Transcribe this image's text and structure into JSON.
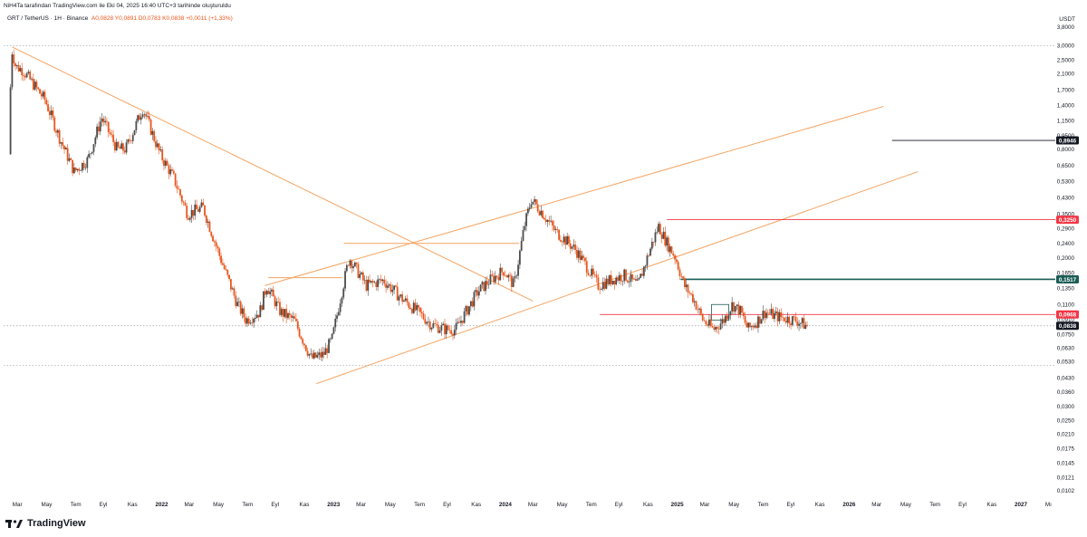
{
  "header": {
    "caption": "NiH4Ta tarafından TradingView.com ile Eki 04, 2025 16:40 UTC+3 tarihinde oluşturuldu",
    "symbol": "GRT / TetherUS · 1H · Binance",
    "ohlc": "A0,0828  Y0,0891  D0,0783  K0,0838  +0,0011 (+1,33%)",
    "currency": "USDT"
  },
  "brand": {
    "name": "TradingView"
  },
  "chart_data": {
    "type": "candlestick",
    "scale": "log",
    "ylim": [
      0.0095,
      3.8
    ],
    "y_ticks": [
      {
        "label": "3,8000",
        "value": 3.8
      },
      {
        "label": "3,0000",
        "value": 3.0
      },
      {
        "label": "2,5000",
        "value": 2.5
      },
      {
        "label": "2,1000",
        "value": 2.1
      },
      {
        "label": "1,7000",
        "value": 1.7
      },
      {
        "label": "1,4000",
        "value": 1.4
      },
      {
        "label": "1,1500",
        "value": 1.15
      },
      {
        "label": "0,9500",
        "value": 0.95
      },
      {
        "label": "0,8000",
        "value": 0.8
      },
      {
        "label": "0,6500",
        "value": 0.65
      },
      {
        "label": "0,5300",
        "value": 0.53
      },
      {
        "label": "0,4300",
        "value": 0.43
      },
      {
        "label": "0,3500",
        "value": 0.35
      },
      {
        "label": "0,2900",
        "value": 0.29
      },
      {
        "label": "0,2400",
        "value": 0.24
      },
      {
        "label": "0,2000",
        "value": 0.2
      },
      {
        "label": "0,1650",
        "value": 0.165
      },
      {
        "label": "0,1350",
        "value": 0.135
      },
      {
        "label": "0,1100",
        "value": 0.11
      },
      {
        "label": "0,0910",
        "value": 0.091
      },
      {
        "label": "0,0750",
        "value": 0.075
      },
      {
        "label": "0,0630",
        "value": 0.063
      },
      {
        "label": "0,0530",
        "value": 0.053
      },
      {
        "label": "0,0430",
        "value": 0.043
      },
      {
        "label": "0,0360",
        "value": 0.036
      },
      {
        "label": "0,0300",
        "value": 0.03
      },
      {
        "label": "0,0250",
        "value": 0.025
      },
      {
        "label": "0,0210",
        "value": 0.021
      },
      {
        "label": "0,0175",
        "value": 0.0175
      },
      {
        "label": "0,0145",
        "value": 0.0145
      },
      {
        "label": "0,0121",
        "value": 0.0121
      },
      {
        "label": "0,0102",
        "value": 0.0102
      }
    ],
    "x_ticks": [
      {
        "label": "Mar",
        "t": 2021.16,
        "bold": false
      },
      {
        "label": "May",
        "t": 2021.33,
        "bold": false
      },
      {
        "label": "Tem",
        "t": 2021.5,
        "bold": false
      },
      {
        "label": "Eyl",
        "t": 2021.66,
        "bold": false
      },
      {
        "label": "Kas",
        "t": 2021.83,
        "bold": false
      },
      {
        "label": "2022",
        "t": 2022.0,
        "bold": true
      },
      {
        "label": "Mar",
        "t": 2022.16,
        "bold": false
      },
      {
        "label": "May",
        "t": 2022.33,
        "bold": false
      },
      {
        "label": "Tem",
        "t": 2022.5,
        "bold": false
      },
      {
        "label": "Eyl",
        "t": 2022.66,
        "bold": false
      },
      {
        "label": "Kas",
        "t": 2022.83,
        "bold": false
      },
      {
        "label": "2023",
        "t": 2023.0,
        "bold": true
      },
      {
        "label": "Mar",
        "t": 2023.16,
        "bold": false
      },
      {
        "label": "May",
        "t": 2023.33,
        "bold": false
      },
      {
        "label": "Tem",
        "t": 2023.5,
        "bold": false
      },
      {
        "label": "Eyl",
        "t": 2023.66,
        "bold": false
      },
      {
        "label": "Kas",
        "t": 2023.83,
        "bold": false
      },
      {
        "label": "2024",
        "t": 2024.0,
        "bold": true
      },
      {
        "label": "Mar",
        "t": 2024.16,
        "bold": false
      },
      {
        "label": "May",
        "t": 2024.33,
        "bold": false
      },
      {
        "label": "Tem",
        "t": 2024.5,
        "bold": false
      },
      {
        "label": "Eyl",
        "t": 2024.66,
        "bold": false
      },
      {
        "label": "Kas",
        "t": 2024.83,
        "bold": false
      },
      {
        "label": "2025",
        "t": 2025.0,
        "bold": true
      },
      {
        "label": "Mar",
        "t": 2025.16,
        "bold": false
      },
      {
        "label": "May",
        "t": 2025.33,
        "bold": false
      },
      {
        "label": "Tem",
        "t": 2025.5,
        "bold": false
      },
      {
        "label": "Eyl",
        "t": 2025.66,
        "bold": false
      },
      {
        "label": "Kas",
        "t": 2025.83,
        "bold": false
      },
      {
        "label": "2026",
        "t": 2026.0,
        "bold": true
      },
      {
        "label": "Mar",
        "t": 2026.16,
        "bold": false
      },
      {
        "label": "May",
        "t": 2026.33,
        "bold": false
      },
      {
        "label": "Tem",
        "t": 2026.5,
        "bold": false
      },
      {
        "label": "Eyl",
        "t": 2026.66,
        "bold": false
      },
      {
        "label": "Kas",
        "t": 2026.83,
        "bold": false
      },
      {
        "label": "2027",
        "t": 2027.0,
        "bold": true
      },
      {
        "label": "Mı",
        "t": 2027.16,
        "bold": false
      }
    ],
    "path": [
      [
        2021.12,
        0.75
      ],
      [
        2021.135,
        2.9
      ],
      [
        2021.16,
        2.3
      ],
      [
        2021.2,
        2.2
      ],
      [
        2021.25,
        1.9
      ],
      [
        2021.33,
        1.5
      ],
      [
        2021.42,
        0.9
      ],
      [
        2021.5,
        0.6
      ],
      [
        2021.58,
        0.7
      ],
      [
        2021.66,
        1.2
      ],
      [
        2021.75,
        0.8
      ],
      [
        2021.8,
        0.8
      ],
      [
        2021.9,
        1.35
      ],
      [
        2022.0,
        0.75
      ],
      [
        2022.08,
        0.55
      ],
      [
        2022.16,
        0.35
      ],
      [
        2022.25,
        0.38
      ],
      [
        2022.35,
        0.2
      ],
      [
        2022.45,
        0.11
      ],
      [
        2022.5,
        0.09
      ],
      [
        2022.58,
        0.1
      ],
      [
        2022.62,
        0.14
      ],
      [
        2022.7,
        0.1
      ],
      [
        2022.78,
        0.09
      ],
      [
        2022.88,
        0.055
      ],
      [
        2022.95,
        0.058
      ],
      [
        2023.0,
        0.07
      ],
      [
        2023.05,
        0.12
      ],
      [
        2023.1,
        0.2
      ],
      [
        2023.2,
        0.14
      ],
      [
        2023.3,
        0.15
      ],
      [
        2023.4,
        0.12
      ],
      [
        2023.5,
        0.1
      ],
      [
        2023.58,
        0.085
      ],
      [
        2023.66,
        0.08
      ],
      [
        2023.72,
        0.08
      ],
      [
        2023.78,
        0.1
      ],
      [
        2023.85,
        0.13
      ],
      [
        2023.92,
        0.15
      ],
      [
        2024.0,
        0.17
      ],
      [
        2024.06,
        0.14
      ],
      [
        2024.12,
        0.3
      ],
      [
        2024.16,
        0.42
      ],
      [
        2024.22,
        0.36
      ],
      [
        2024.3,
        0.28
      ],
      [
        2024.36,
        0.25
      ],
      [
        2024.42,
        0.22
      ],
      [
        2024.48,
        0.18
      ],
      [
        2024.55,
        0.14
      ],
      [
        2024.62,
        0.15
      ],
      [
        2024.7,
        0.16
      ],
      [
        2024.78,
        0.14
      ],
      [
        2024.85,
        0.22
      ],
      [
        2024.9,
        0.3
      ],
      [
        2024.95,
        0.24
      ],
      [
        2025.0,
        0.2
      ],
      [
        2025.05,
        0.14
      ],
      [
        2025.1,
        0.12
      ],
      [
        2025.16,
        0.09
      ],
      [
        2025.22,
        0.08
      ],
      [
        2025.28,
        0.09
      ],
      [
        2025.33,
        0.11
      ],
      [
        2025.38,
        0.1
      ],
      [
        2025.42,
        0.08
      ],
      [
        2025.48,
        0.09
      ],
      [
        2025.52,
        0.1
      ],
      [
        2025.58,
        0.095
      ],
      [
        2025.64,
        0.092
      ],
      [
        2025.7,
        0.09
      ],
      [
        2025.76,
        0.0838
      ]
    ],
    "downtrend_line": [
      [
        2021.13,
        2.95
      ],
      [
        2024.16,
        0.115
      ]
    ],
    "lower_channel_line": [
      [
        2022.9,
        0.04
      ],
      [
        2026.4,
        0.6
      ]
    ],
    "upper_channel_line": [
      [
        2022.6,
        0.14
      ],
      [
        2026.2,
        1.38
      ]
    ],
    "horizontal_rays": [
      {
        "name": "ray-0-8946",
        "t0": 2026.25,
        "price": 0.8946,
        "color": "#131722"
      },
      {
        "name": "ray-0-3250",
        "t0": 2024.94,
        "price": 0.325,
        "color": "#f23645"
      },
      {
        "name": "ray-0-1517",
        "t0": 2025.02,
        "price": 0.1517,
        "color": "#1a5c55"
      },
      {
        "name": "ray-0-0968",
        "t0": 2024.55,
        "price": 0.0968,
        "color": "#f23645"
      }
    ],
    "boxes": [
      {
        "t0": 2022.62,
        "t1": 2023.05,
        "price": 0.155
      },
      {
        "t0": 2023.06,
        "t1": 2024.08,
        "price": 0.24
      }
    ],
    "small_box": {
      "t0": 2025.2,
      "t1": 2025.3,
      "p_top": 0.11,
      "p_bot": 0.09
    },
    "dotted_levels": [
      3.0,
      0.0838,
      0.0505
    ],
    "price_labels": [
      {
        "value": "0,8946",
        "price": 0.8946,
        "bg": "#131722",
        "fg": "#ffffff"
      },
      {
        "value": "0,3250",
        "price": 0.325,
        "bg": "#f23645",
        "fg": "#ffffff"
      },
      {
        "value": "0,1517",
        "price": 0.1517,
        "bg": "#1a5c55",
        "fg": "#ffffff"
      },
      {
        "value": "0,0968",
        "price": 0.0968,
        "bg": "#f23645",
        "fg": "#ffffff"
      },
      {
        "value": "0,0838",
        "price": 0.0838,
        "bg": "#131722",
        "fg": "#ffffff"
      }
    ],
    "colors": {
      "up": "#4c4c4c",
      "down": "#e8561c",
      "trendline": "#f5a360",
      "grid": "#e6e8ec"
    }
  }
}
